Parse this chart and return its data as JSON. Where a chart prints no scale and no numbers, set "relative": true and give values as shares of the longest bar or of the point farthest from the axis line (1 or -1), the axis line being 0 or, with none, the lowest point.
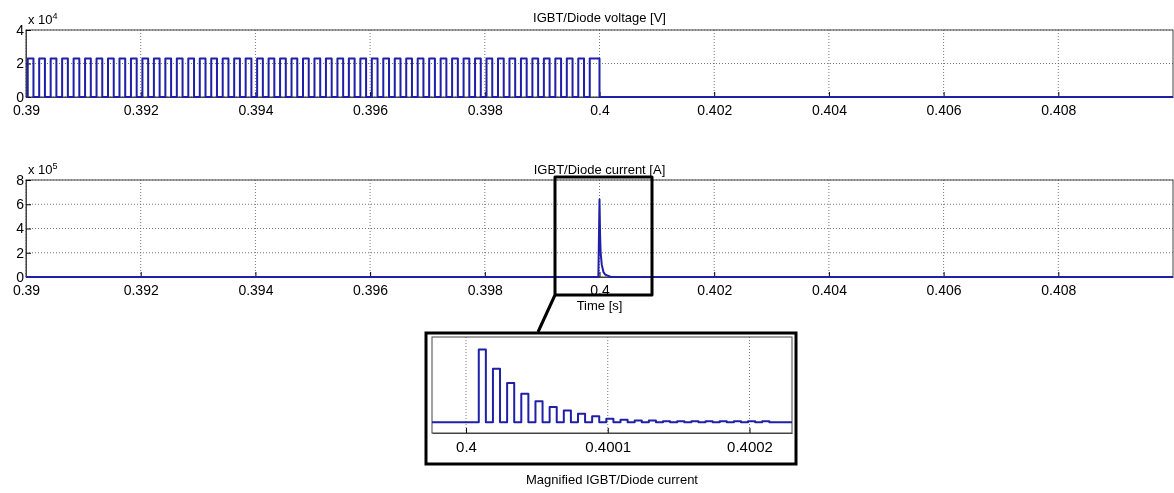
{
  "chart_data": [
    {
      "type": "step",
      "title": "IGBT/Diode voltage [V]",
      "annotations": [
        "x 10$^{4}$"
      ],
      "xlim": [
        0.39,
        0.41
      ],
      "xticks": [
        0.39,
        0.392,
        0.394,
        0.396,
        0.398,
        0.4,
        0.402,
        0.404,
        0.406,
        0.408
      ],
      "ylim": [
        0,
        4
      ],
      "yticks": [
        0,
        2,
        4
      ],
      "grid": true,
      "series": [
        {
          "color": "#1f1fa8",
          "x": [
            0.39,
            0.39003,
            0.39013,
            0.39023,
            0.39033,
            0.39043,
            0.39053,
            0.39063,
            0.39073,
            0.39083,
            0.39093,
            0.39103,
            0.39113,
            0.39123,
            0.39133,
            0.39143,
            0.39153,
            0.39163,
            0.39173,
            0.39183,
            0.39193,
            0.39203,
            0.39213,
            0.39223,
            0.39233,
            0.39243,
            0.39253,
            0.39263,
            0.39273,
            0.39283,
            0.39293,
            0.39303,
            0.39313,
            0.39323,
            0.39333,
            0.39343,
            0.39353,
            0.39363,
            0.39373,
            0.39383,
            0.39393,
            0.39403,
            0.39413,
            0.39423,
            0.39433,
            0.39443,
            0.39453,
            0.39463,
            0.39473,
            0.39483,
            0.39493,
            0.39503,
            0.39513,
            0.39523,
            0.39533,
            0.39543,
            0.39553,
            0.39563,
            0.39573,
            0.39583,
            0.39593,
            0.39603,
            0.39613,
            0.39623,
            0.39633,
            0.39643,
            0.39653,
            0.39663,
            0.39673,
            0.39683,
            0.39693,
            0.39703,
            0.39713,
            0.39723,
            0.39733,
            0.39743,
            0.39753,
            0.39763,
            0.39773,
            0.39783,
            0.39793,
            0.39803,
            0.39813,
            0.39823,
            0.39833,
            0.39843,
            0.39853,
            0.39863,
            0.39873,
            0.39883,
            0.39893,
            0.39903,
            0.39913,
            0.39923,
            0.39933,
            0.39943,
            0.39953,
            0.39963,
            0.39973,
            0.39983,
            0.4,
            0.41
          ],
          "values": [
            0,
            2.3,
            0,
            2.3,
            0,
            2.3,
            0,
            2.3,
            0,
            2.3,
            0,
            2.3,
            0,
            2.3,
            0,
            2.3,
            0,
            2.3,
            0,
            2.3,
            0,
            2.3,
            0,
            2.3,
            0,
            2.3,
            0,
            2.3,
            0,
            2.3,
            0,
            2.3,
            0,
            2.3,
            0,
            2.3,
            0,
            2.3,
            0,
            2.3,
            0,
            2.3,
            0,
            2.3,
            0,
            2.3,
            0,
            2.3,
            0,
            2.3,
            0,
            2.3,
            0,
            2.3,
            0,
            2.3,
            0,
            2.3,
            0,
            2.3,
            0,
            2.3,
            0,
            2.3,
            0,
            2.3,
            0,
            2.3,
            0,
            2.3,
            0,
            2.3,
            0,
            2.3,
            0,
            2.3,
            0,
            2.3,
            0,
            2.3,
            0,
            2.3,
            0,
            2.3,
            0,
            2.3,
            0,
            2.3,
            0,
            2.3,
            0,
            2.3,
            0,
            2.3,
            0,
            2.3,
            0,
            2.3,
            0,
            2.3,
            0,
            0
          ]
        }
      ]
    },
    {
      "type": "line",
      "title": "IGBT/Diode current [A]",
      "xlabel": "Time [s]",
      "annotations": [
        "x 10$^{5}$"
      ],
      "xlim": [
        0.39,
        0.41
      ],
      "xticks": [
        0.39,
        0.392,
        0.394,
        0.396,
        0.398,
        0.4,
        0.402,
        0.404,
        0.406,
        0.408
      ],
      "ylim": [
        0,
        8
      ],
      "yticks": [
        0,
        2,
        4,
        6,
        8
      ],
      "grid": true,
      "series": [
        {
          "color": "#1f1fa8",
          "x": [
            0.39,
            0.39998,
            0.4,
            0.40001,
            0.40002,
            0.40004,
            0.40007,
            0.4001,
            0.4002,
            0.41
          ],
          "values": [
            0,
            0,
            6.4,
            3.5,
            2,
            1,
            0.4,
            0.2,
            0,
            0
          ]
        }
      ]
    },
    {
      "type": "step",
      "title": "Magnified IGBT/Diode current",
      "relative": true,
      "tick_labels": "x",
      "xlim": [
        0.399976,
        0.40023
      ],
      "xticks": [
        0.4,
        0.4001,
        0.4002
      ],
      "grid": "x",
      "series": [
        {
          "color": "#1f1fa8",
          "x": [
            0.399976,
            0.400009,
            0.400014,
            0.400019,
            0.400024,
            0.400029,
            0.400034,
            0.400039,
            0.400044,
            0.400049,
            0.400054,
            0.400059,
            0.400064,
            0.400069,
            0.400074,
            0.400079,
            0.400084,
            0.400089,
            0.400094,
            0.400099,
            0.400104,
            0.400109,
            0.400114,
            0.400119,
            0.400124,
            0.400129,
            0.400134,
            0.400139,
            0.400144,
            0.400149,
            0.400154,
            0.400159,
            0.400164,
            0.400169,
            0.400174,
            0.400179,
            0.400184,
            0.400189,
            0.400194,
            0.400199,
            0.400204,
            0.400209,
            0.400214,
            0.40023
          ],
          "values": [
            0.13,
            1,
            0.13,
            0.77,
            0.13,
            0.6,
            0.13,
            0.47,
            0.13,
            0.38,
            0.13,
            0.31,
            0.13,
            0.27,
            0.13,
            0.23,
            0.13,
            0.2,
            0.13,
            0.17,
            0.13,
            0.16,
            0.13,
            0.15,
            0.13,
            0.15,
            0.13,
            0.14,
            0.13,
            0.14,
            0.13,
            0.14,
            0.13,
            0.14,
            0.13,
            0.14,
            0.13,
            0.14,
            0.13,
            0.14,
            0.13,
            0.14,
            0.13,
            0.13
          ]
        }
      ]
    }
  ]
}
